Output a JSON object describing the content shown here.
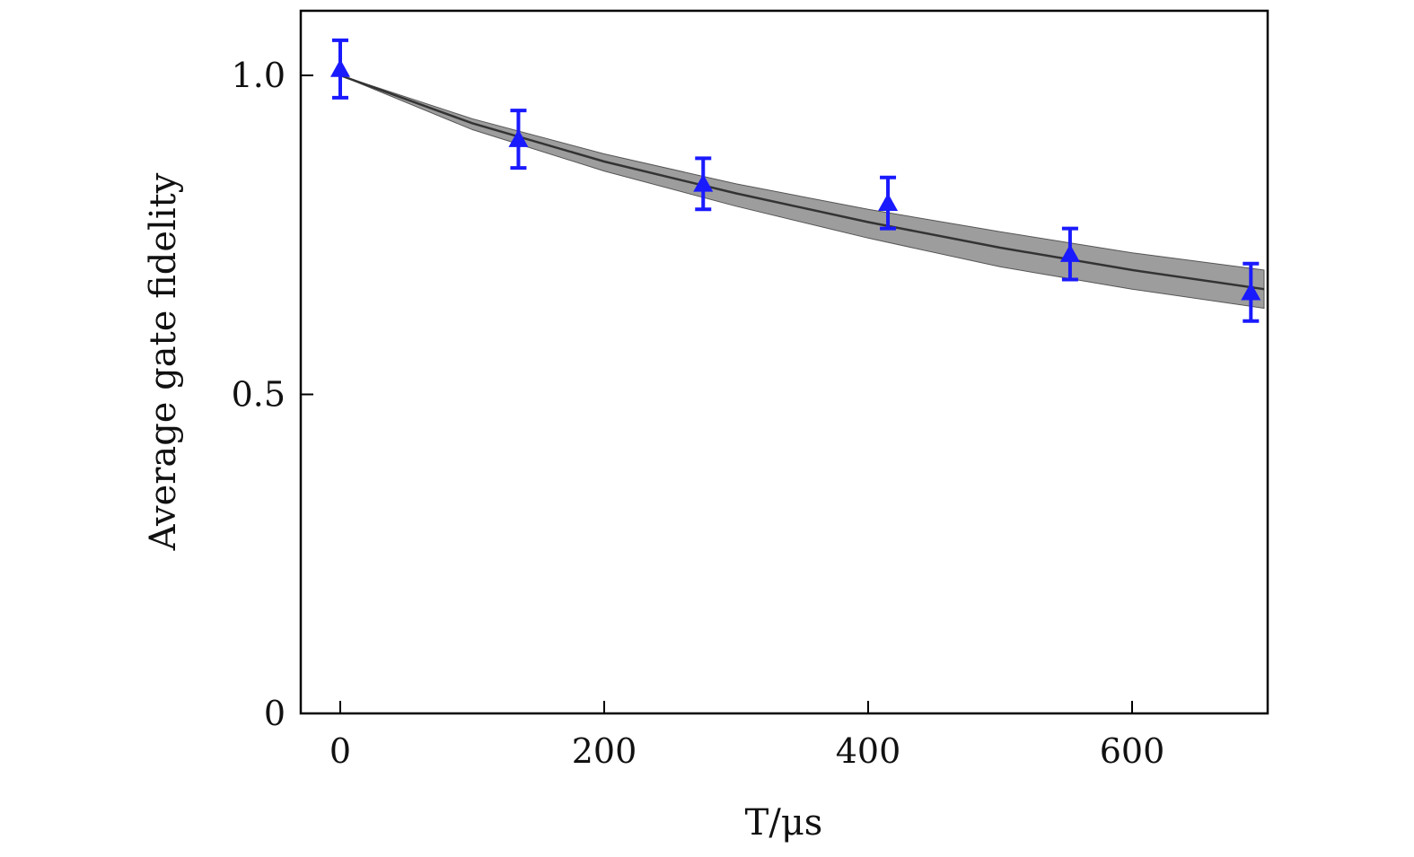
{
  "chart_data": {
    "type": "scatter",
    "title": "",
    "xlabel": "T/μs",
    "ylabel": "Average gate fidelity",
    "xlim": [
      -30,
      700
    ],
    "ylim": [
      0,
      1.1
    ],
    "xticks": [
      0,
      200,
      400,
      600
    ],
    "xtick_labels": [
      "0",
      "200",
      "400",
      "600"
    ],
    "yticks": [
      0,
      0.5,
      1.0
    ],
    "ytick_labels": [
      "0",
      "0.5",
      "1.0"
    ],
    "grid": false,
    "legend": "none",
    "points": [
      {
        "x": 0,
        "y": 1.01,
        "yerr": 0.045
      },
      {
        "x": 135,
        "y": 0.9,
        "yerr": 0.045
      },
      {
        "x": 275,
        "y": 0.83,
        "yerr": 0.04
      },
      {
        "x": 415,
        "y": 0.8,
        "yerr": 0.04
      },
      {
        "x": 553,
        "y": 0.72,
        "yerr": 0.04
      },
      {
        "x": 690,
        "y": 0.66,
        "yerr": 0.045
      }
    ],
    "fit": {
      "x": [
        0,
        100,
        200,
        300,
        400,
        500,
        600,
        700
      ],
      "y": [
        1.0,
        0.925,
        0.865,
        0.815,
        0.77,
        0.73,
        0.695,
        0.665
      ],
      "band_lower": [
        1.0,
        0.915,
        0.85,
        0.795,
        0.745,
        0.7,
        0.665,
        0.635
      ],
      "band_upper": [
        1.0,
        0.932,
        0.877,
        0.83,
        0.79,
        0.755,
        0.722,
        0.695
      ]
    },
    "colors": {
      "points": "#1a1aff",
      "fit_line": "#333333",
      "band": "#8c8c8c",
      "axes": "#000000"
    }
  }
}
